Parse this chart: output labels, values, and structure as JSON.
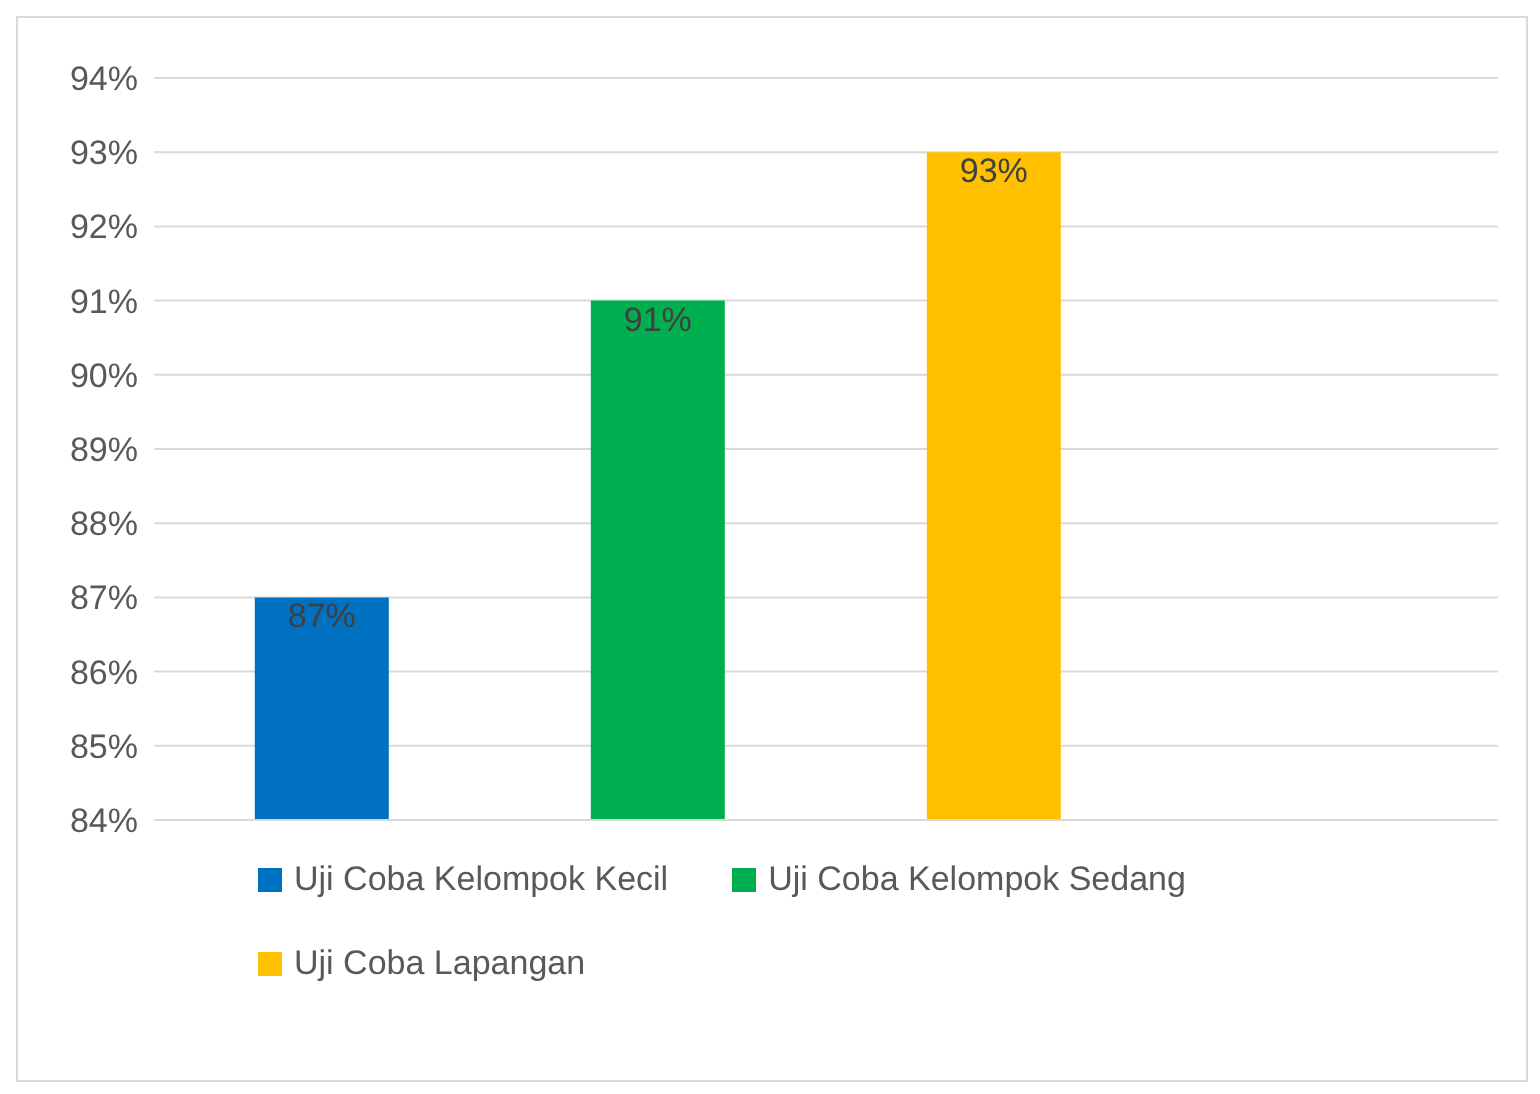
{
  "chart_data": {
    "type": "bar",
    "categories": [
      null,
      null,
      null,
      null
    ],
    "series": [
      {
        "name": "Uji Coba Kelompok Kecil",
        "color": "#0070c0",
        "values": [
          87,
          null,
          null,
          null
        ],
        "value_labels": [
          "87%",
          null,
          null,
          null
        ]
      },
      {
        "name": "Uji Coba Kelompok Sedang",
        "color": "#00b050",
        "values": [
          null,
          91,
          null,
          null
        ],
        "value_labels": [
          null,
          "91%",
          null,
          null
        ]
      },
      {
        "name": "Uji Coba Lapangan",
        "color": "#ffc000",
        "values": [
          null,
          null,
          93,
          null
        ],
        "value_labels": [
          null,
          null,
          "93%",
          null
        ]
      }
    ],
    "ylim": [
      84,
      94
    ],
    "yticks": [
      {
        "value": 84,
        "label": "84%"
      },
      {
        "value": 85,
        "label": "85%"
      },
      {
        "value": 86,
        "label": "86%"
      },
      {
        "value": 87,
        "label": "87%"
      },
      {
        "value": 88,
        "label": "88%"
      },
      {
        "value": 89,
        "label": "89%"
      },
      {
        "value": 90,
        "label": "90%"
      },
      {
        "value": 91,
        "label": "91%"
      },
      {
        "value": 92,
        "label": "92%"
      },
      {
        "value": 93,
        "label": "93%"
      },
      {
        "value": 94,
        "label": "94%"
      }
    ],
    "grid": "y",
    "legend": "bottom"
  }
}
